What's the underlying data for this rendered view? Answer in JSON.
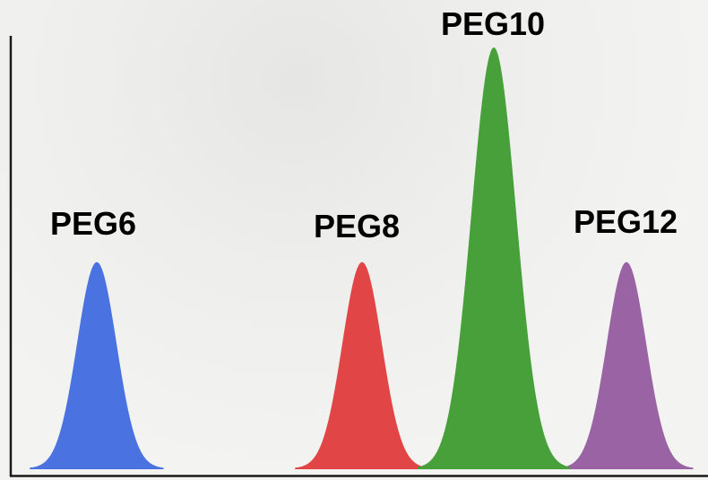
{
  "chart_data": {
    "type": "area",
    "title": "",
    "xlabel": "",
    "ylabel": "",
    "grid": false,
    "xlim": [
      0,
      790
    ],
    "ylim": [
      0,
      1.0
    ],
    "series": [
      {
        "name": "PEG6",
        "center": 108,
        "height": 0.49,
        "width": 22,
        "color": "#4a72e0"
      },
      {
        "name": "PEG8",
        "center": 404,
        "height": 0.49,
        "width": 22,
        "color": "#e14545"
      },
      {
        "name": "PEG10",
        "center": 551,
        "height": 1.0,
        "width": 25,
        "color": "#47a03a"
      },
      {
        "name": "PEG12",
        "center": 699,
        "height": 0.49,
        "width": 22,
        "color": "#9a63a4"
      }
    ],
    "labels": [
      "PEG6",
      "PEG8",
      "PEG10",
      "PEG12"
    ]
  }
}
